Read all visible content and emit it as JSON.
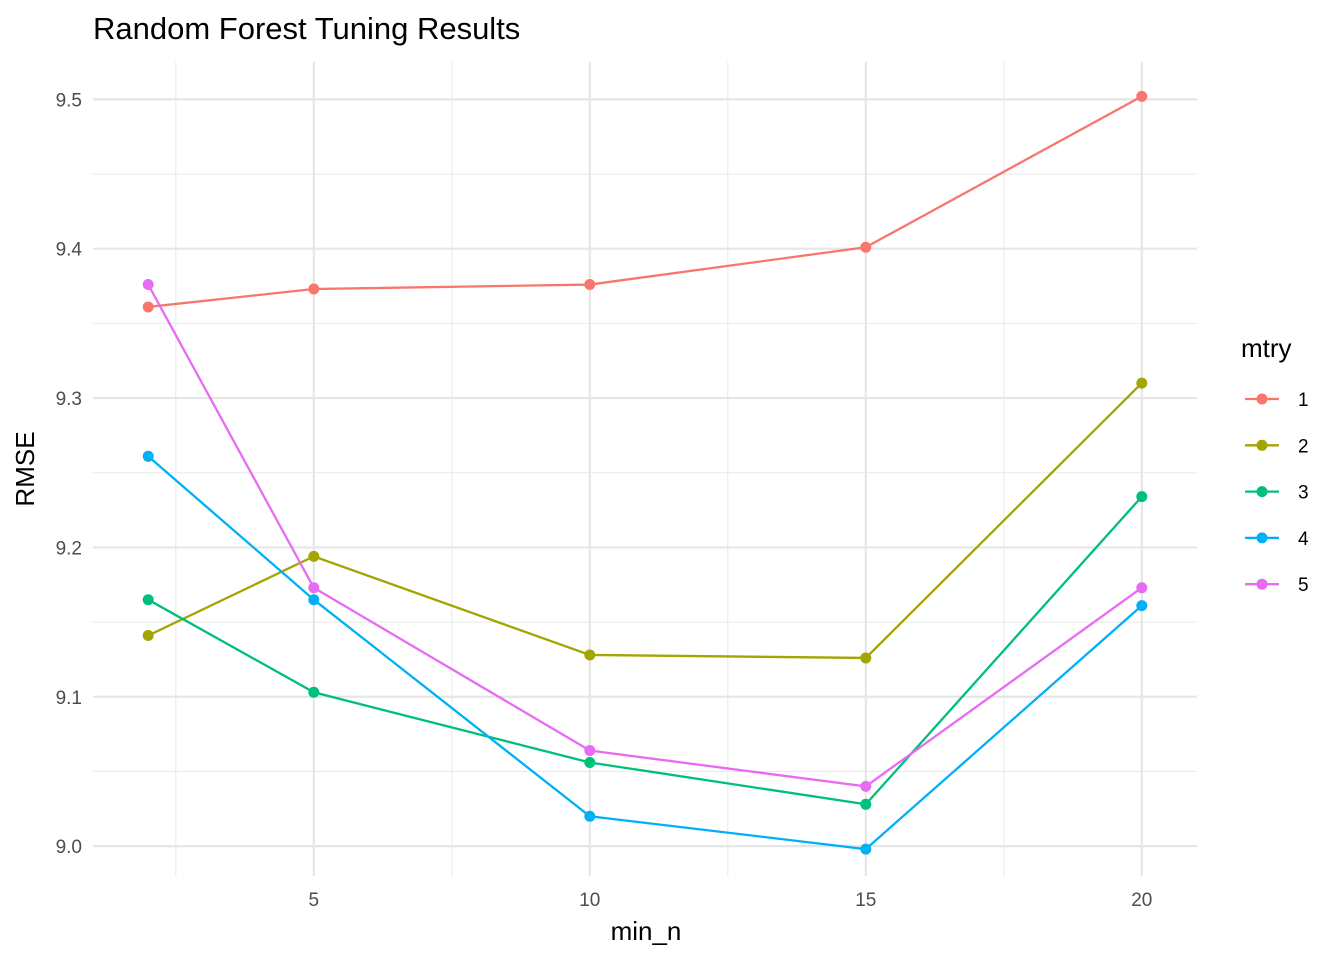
{
  "chart_data": {
    "type": "line",
    "title": "Random Forest Tuning Results",
    "xlabel": "min_n",
    "ylabel": "RMSE",
    "x": [
      2,
      5,
      10,
      15,
      20
    ],
    "x_ticks": [
      5,
      10,
      15,
      20
    ],
    "x_tick_labels": [
      "5",
      "10",
      "15",
      "20"
    ],
    "y_ticks": [
      9.0,
      9.1,
      9.2,
      9.3,
      9.4,
      9.5
    ],
    "y_tick_labels": [
      "9.0",
      "9.1",
      "9.2",
      "9.3",
      "9.4",
      "9.5"
    ],
    "xlim": [
      1.0,
      21.0
    ],
    "ylim": [
      8.98,
      9.525
    ],
    "grid": true,
    "legend": {
      "title": "mtry",
      "placement": "right"
    },
    "series": [
      {
        "name": "1",
        "color": "#F8766D",
        "values": [
          9.361,
          9.373,
          9.376,
          9.401,
          9.502
        ]
      },
      {
        "name": "2",
        "color": "#A3A500",
        "values": [
          9.141,
          9.194,
          9.128,
          9.126,
          9.31
        ]
      },
      {
        "name": "3",
        "color": "#00BF7D",
        "values": [
          9.165,
          9.103,
          9.056,
          9.028,
          9.234
        ]
      },
      {
        "name": "4",
        "color": "#00B0F6",
        "values": [
          9.261,
          9.165,
          9.02,
          8.998,
          9.161
        ]
      },
      {
        "name": "5",
        "color": "#E76BF3",
        "values": [
          9.376,
          9.173,
          9.064,
          9.04,
          9.173
        ]
      }
    ]
  }
}
